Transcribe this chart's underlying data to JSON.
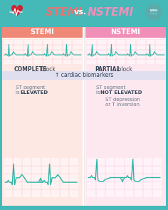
{
  "bg_color": "#45b8b8",
  "title_stemi_color": "#f07070",
  "title_vs_color": "#ffffff",
  "title_nstemi_color": "#f090b8",
  "stemi_header_color": "#f08878",
  "nstemi_header_color": "#f090b8",
  "stemi_top_bg": "#fde8e4",
  "nstemi_top_bg": "#fde8f0",
  "stemi_bot_bg": "#fde8e4",
  "nstemi_bot_bg": "#fde8f0",
  "biomarker_bg": "#e0dff0",
  "ecg_color": "#2ab5a5",
  "ecg_top_grid": "#f5c0c0",
  "ecg_bot_stemi_grid": "#f5c0c0",
  "ecg_bot_nstemi_grid": "#f5c0d8",
  "white": "#ffffff",
  "text_dark": "#334455",
  "text_mid": "#667788",
  "complete_bold": "COMPLETE",
  "complete_rest": " block",
  "partial_bold": "PARTIAL",
  "partial_rest": " block",
  "biomarker_text": "↑ cardiac biomarkers",
  "stemi_label": "STEMI",
  "nstemi_label": "NSTEMI",
  "stemi_st1": "ST segment",
  "stemi_st2": "is ",
  "stemi_st2b": "ELEVATED",
  "nstemi_st1": "ST segment",
  "nstemi_st2": "is ",
  "nstemi_st2b": "NOT ELEVATED",
  "nstemi_st3": "ST depression",
  "nstemi_st4": "or T inversion"
}
